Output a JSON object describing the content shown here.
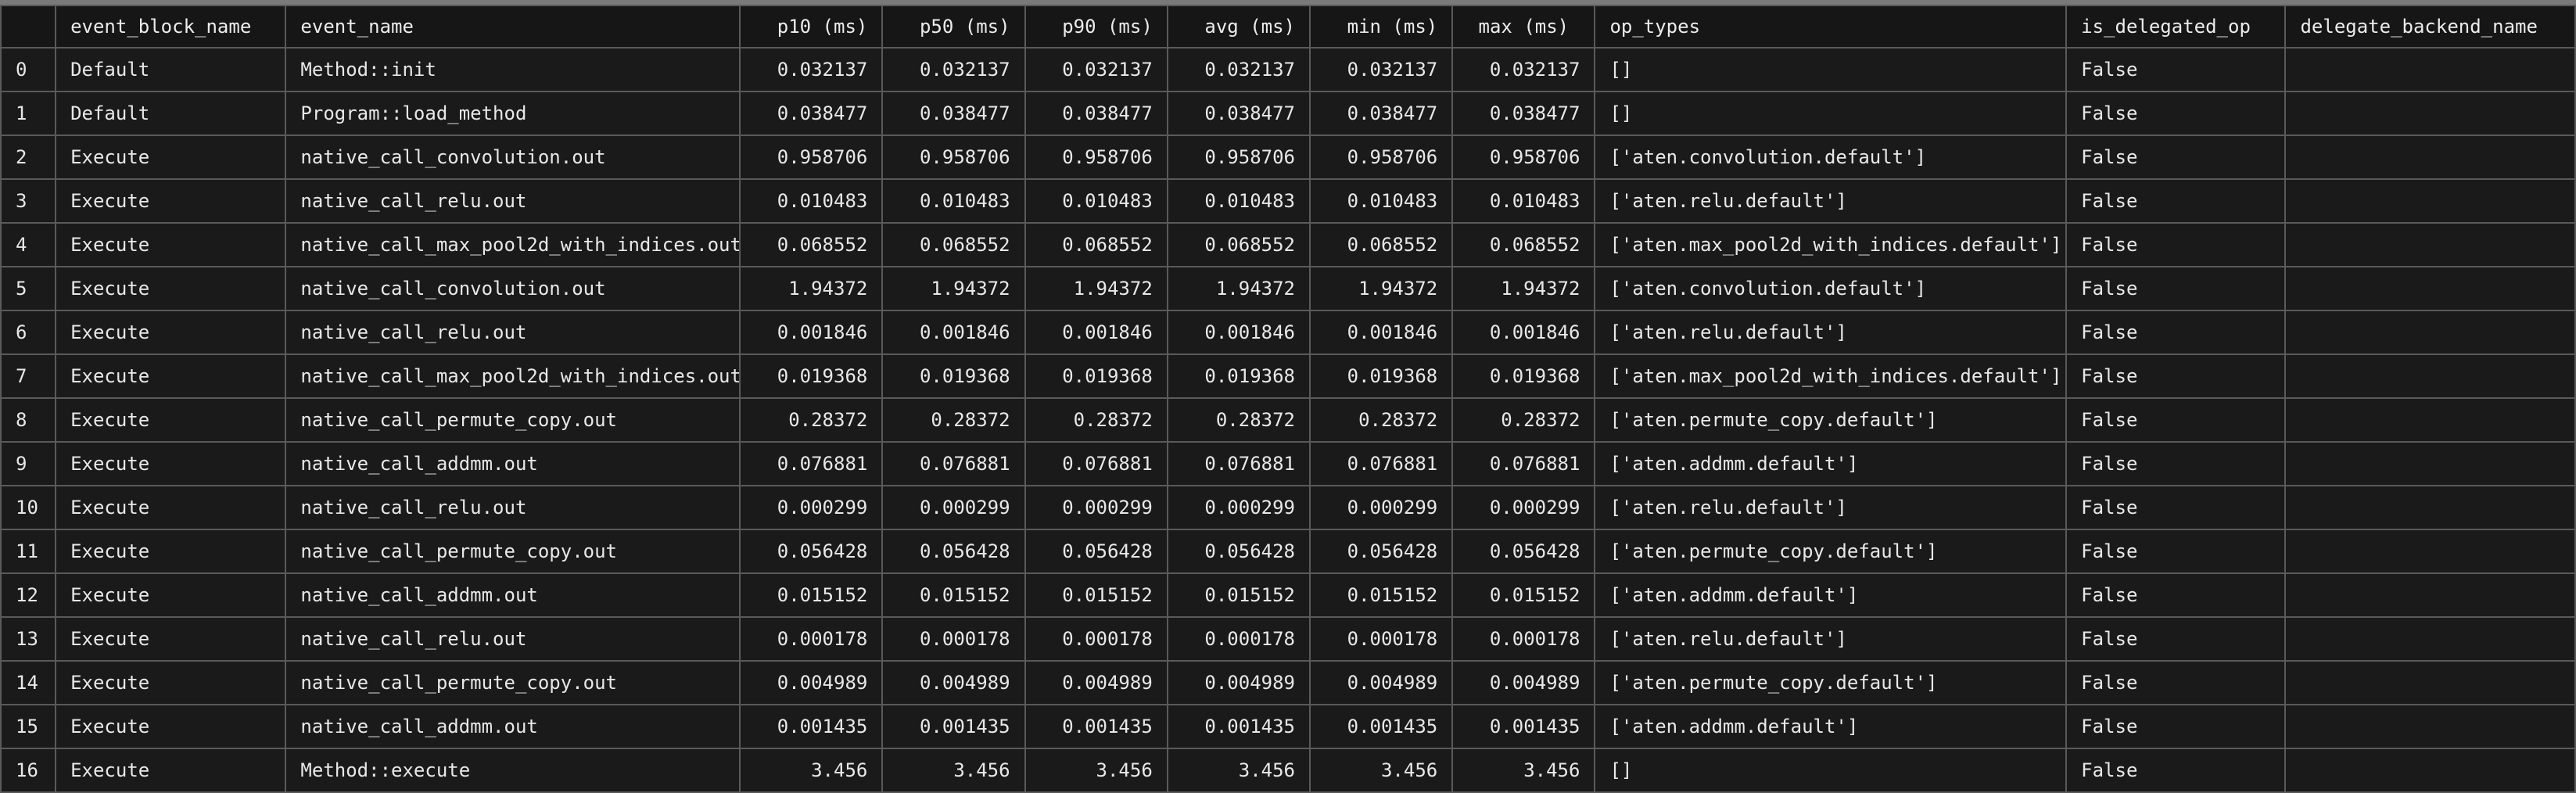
{
  "columns": [
    {
      "key": "index",
      "label": ""
    },
    {
      "key": "event_block_name",
      "label": "event_block_name"
    },
    {
      "key": "event_name",
      "label": "event_name"
    },
    {
      "key": "p10",
      "label": "p10 (ms)"
    },
    {
      "key": "p50",
      "label": "p50 (ms)"
    },
    {
      "key": "p90",
      "label": "p90 (ms)"
    },
    {
      "key": "avg",
      "label": "avg (ms)"
    },
    {
      "key": "min",
      "label": "min (ms)"
    },
    {
      "key": "max",
      "label": "max (ms)"
    },
    {
      "key": "op_types",
      "label": "op_types"
    },
    {
      "key": "is_delegated_op",
      "label": "is_delegated_op"
    },
    {
      "key": "delegate_backend_name",
      "label": "delegate_backend_name"
    }
  ],
  "rows": [
    [
      "0",
      "Default",
      "Method::init",
      "0.032137",
      "0.032137",
      "0.032137",
      "0.032137",
      "0.032137",
      "0.032137",
      "[]",
      "False",
      ""
    ],
    [
      "1",
      "Default",
      "Program::load_method",
      "0.038477",
      "0.038477",
      "0.038477",
      "0.038477",
      "0.038477",
      "0.038477",
      "[]",
      "False",
      ""
    ],
    [
      "2",
      "Execute",
      "native_call_convolution.out",
      "0.958706",
      "0.958706",
      "0.958706",
      "0.958706",
      "0.958706",
      "0.958706",
      "['aten.convolution.default']",
      "False",
      ""
    ],
    [
      "3",
      "Execute",
      "native_call_relu.out",
      "0.010483",
      "0.010483",
      "0.010483",
      "0.010483",
      "0.010483",
      "0.010483",
      "['aten.relu.default']",
      "False",
      ""
    ],
    [
      "4",
      "Execute",
      "native_call_max_pool2d_with_indices.out",
      "0.068552",
      "0.068552",
      "0.068552",
      "0.068552",
      "0.068552",
      "0.068552",
      "['aten.max_pool2d_with_indices.default']",
      "False",
      ""
    ],
    [
      "5",
      "Execute",
      "native_call_convolution.out",
      "1.94372",
      "1.94372",
      "1.94372",
      "1.94372",
      "1.94372",
      "1.94372",
      "['aten.convolution.default']",
      "False",
      ""
    ],
    [
      "6",
      "Execute",
      "native_call_relu.out",
      "0.001846",
      "0.001846",
      "0.001846",
      "0.001846",
      "0.001846",
      "0.001846",
      "['aten.relu.default']",
      "False",
      ""
    ],
    [
      "7",
      "Execute",
      "native_call_max_pool2d_with_indices.out",
      "0.019368",
      "0.019368",
      "0.019368",
      "0.019368",
      "0.019368",
      "0.019368",
      "['aten.max_pool2d_with_indices.default']",
      "False",
      ""
    ],
    [
      "8",
      "Execute",
      "native_call_permute_copy.out",
      "0.28372",
      "0.28372",
      "0.28372",
      "0.28372",
      "0.28372",
      "0.28372",
      "['aten.permute_copy.default']",
      "False",
      ""
    ],
    [
      "9",
      "Execute",
      "native_call_addmm.out",
      "0.076881",
      "0.076881",
      "0.076881",
      "0.076881",
      "0.076881",
      "0.076881",
      "['aten.addmm.default']",
      "False",
      ""
    ],
    [
      "10",
      "Execute",
      "native_call_relu.out",
      "0.000299",
      "0.000299",
      "0.000299",
      "0.000299",
      "0.000299",
      "0.000299",
      "['aten.relu.default']",
      "False",
      ""
    ],
    [
      "11",
      "Execute",
      "native_call_permute_copy.out",
      "0.056428",
      "0.056428",
      "0.056428",
      "0.056428",
      "0.056428",
      "0.056428",
      "['aten.permute_copy.default']",
      "False",
      ""
    ],
    [
      "12",
      "Execute",
      "native_call_addmm.out",
      "0.015152",
      "0.015152",
      "0.015152",
      "0.015152",
      "0.015152",
      "0.015152",
      "['aten.addmm.default']",
      "False",
      ""
    ],
    [
      "13",
      "Execute",
      "native_call_relu.out",
      "0.000178",
      "0.000178",
      "0.000178",
      "0.000178",
      "0.000178",
      "0.000178",
      "['aten.relu.default']",
      "False",
      ""
    ],
    [
      "14",
      "Execute",
      "native_call_permute_copy.out",
      "0.004989",
      "0.004989",
      "0.004989",
      "0.004989",
      "0.004989",
      "0.004989",
      "['aten.permute_copy.default']",
      "False",
      ""
    ],
    [
      "15",
      "Execute",
      "native_call_addmm.out",
      "0.001435",
      "0.001435",
      "0.001435",
      "0.001435",
      "0.001435",
      "0.001435",
      "['aten.addmm.default']",
      "False",
      ""
    ],
    [
      "16",
      "Execute",
      "Method::execute",
      "3.456",
      "3.456",
      "3.456",
      "3.456",
      "3.456",
      "3.456",
      "[]",
      "False",
      ""
    ]
  ]
}
